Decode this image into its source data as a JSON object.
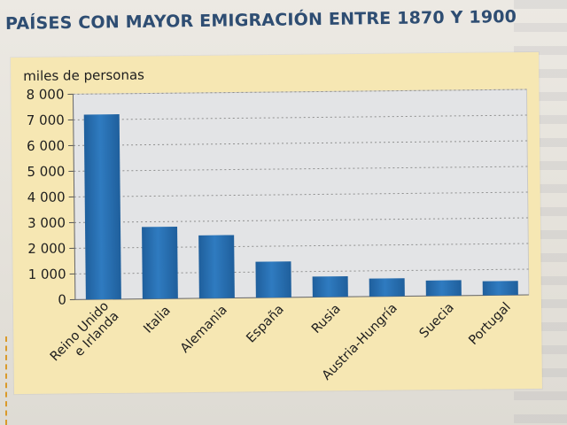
{
  "page": {
    "title": "PAÍSES CON MAYOR EMIGRACIÓN ENTRE 1870 Y 1900"
  },
  "colors": {
    "bar": "#2f7bc0",
    "bar_dark": "#1f5f9c",
    "plot_bg": "#e3e4e6",
    "panel_bg": "#f6e7b3",
    "title": "#2e4d72"
  },
  "chart_data": {
    "type": "bar",
    "title": "PAÍSES CON MAYOR EMIGRACIÓN ENTRE 1870 Y 1900",
    "ylabel": "miles de personas",
    "xlabel": "",
    "ylim": [
      0,
      8000
    ],
    "yticks": [
      0,
      1000,
      2000,
      3000,
      4000,
      5000,
      6000,
      7000,
      8000
    ],
    "ytick_labels": [
      "0",
      "1 000",
      "2 000",
      "3 000",
      "4 000",
      "5 000",
      "6 000",
      "7 000",
      "8 000"
    ],
    "grid": true,
    "categories": [
      [
        "Reino Unido",
        "e Irlanda"
      ],
      [
        "Italia"
      ],
      [
        "Alemania"
      ],
      [
        "España"
      ],
      [
        "Rusia"
      ],
      [
        "Austria-Hungría"
      ],
      [
        "Suecia"
      ],
      [
        "Portugal"
      ]
    ],
    "values": [
      7200,
      2800,
      2450,
      1400,
      800,
      700,
      600,
      550
    ]
  }
}
